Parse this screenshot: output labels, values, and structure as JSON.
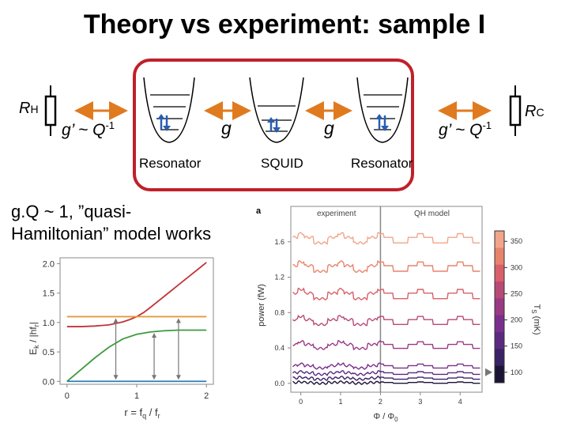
{
  "slide": {
    "title": "Theory vs experiment: sample I",
    "resistor_left": {
      "main": "R",
      "sub": "H"
    },
    "resistor_right": {
      "main": "R",
      "sub": "C"
    },
    "coupling_left": {
      "text": "g’ ~ Q",
      "exp": "-1"
    },
    "coupling_right": {
      "text": "g’ ~ Q",
      "exp": "-1"
    },
    "coupling_g1": "g",
    "coupling_g2": "g",
    "resonator_left_label": "Resonator",
    "squid_label": "SQUID",
    "resonator_right_label": "Resonator",
    "note_line1": "g.Q ~ 1, ”quasi-",
    "note_line2": "Hamiltonian” model works"
  },
  "colors": {
    "accent_red": "#c0202a",
    "arrow_orange": "#e07a1f",
    "arrow_blue": "#2a5db0"
  },
  "chart_data": [
    {
      "type": "line",
      "title": "",
      "xlabel": "r = f",
      "xlabel_parts": {
        "r": "r = f",
        "q": "q",
        "slash": " / f",
        "r2": "r"
      },
      "ylabel": "E",
      "ylabel_parts": {
        "e": "E",
        "k": "k",
        "rest": " / |hf",
        "r": "r",
        "close": "|"
      },
      "xlim": [
        -0.1,
        2.1
      ],
      "ylim": [
        -0.05,
        2.1
      ],
      "x_ticks": [
        "0",
        "1",
        "2"
      ],
      "y_ticks": [
        "0.0",
        "0.5",
        "1.0",
        "1.5",
        "2.0"
      ],
      "series": [
        {
          "color": "#c0343a",
          "x": [
            0,
            0.2,
            0.4,
            0.6,
            0.8,
            0.9,
            1.0,
            1.1,
            1.2,
            1.4,
            1.6,
            1.8,
            2.0
          ],
          "y": [
            0.93,
            0.93,
            0.94,
            0.96,
            1.01,
            1.05,
            1.1,
            1.17,
            1.26,
            1.45,
            1.64,
            1.83,
            2.02
          ]
        },
        {
          "color": "#e39a3a",
          "x": [
            0,
            2
          ],
          "y": [
            1.1,
            1.1
          ]
        },
        {
          "color": "#3d9a3d",
          "x": [
            0,
            0.2,
            0.4,
            0.6,
            0.8,
            1.0,
            1.2,
            1.4,
            1.6,
            1.8,
            2.0
          ],
          "y": [
            0,
            0.2,
            0.4,
            0.58,
            0.72,
            0.8,
            0.84,
            0.86,
            0.87,
            0.87,
            0.87
          ]
        },
        {
          "color": "#2a7fb8",
          "x": [
            0,
            2
          ],
          "y": [
            0,
            0
          ]
        }
      ],
      "arrows": [
        {
          "x": 0.7,
          "y0": 0,
          "y1": 1.1
        },
        {
          "x": 1.25,
          "y0": 0,
          "y1": 0.85
        },
        {
          "x": 1.6,
          "y0": 0,
          "y1": 1.1
        }
      ]
    },
    {
      "type": "line",
      "title": "",
      "panel_label": "a",
      "legend_experiment": "experiment",
      "legend_model": "QH model",
      "xlabel": "Φ / Φ",
      "xlabel_sub": "0",
      "ylabel": "power (fW)",
      "xlim": [
        -0.25,
        4.55
      ],
      "ylim": [
        -0.1,
        2.0
      ],
      "x_ticks": [
        "0",
        "1",
        "2",
        "3",
        "4"
      ],
      "y_ticks": [
        "0.0",
        "0.4",
        "0.8",
        "1.2",
        "1.6"
      ],
      "divider_x": 2,
      "colorbar_label": "T",
      "colorbar_label_sub": "S",
      "colorbar_unit": " (mK)",
      "colorbar_ticks": [
        "100",
        "150",
        "200",
        "250",
        "300",
        "350"
      ],
      "colorbar_range": [
        80,
        370
      ],
      "series": [
        {
          "color": "#f2a58a",
          "offset": 1.65,
          "amp": 0.07
        },
        {
          "color": "#e8846c",
          "offset": 1.33,
          "amp": 0.07
        },
        {
          "color": "#d9606a",
          "offset": 1.02,
          "amp": 0.07
        },
        {
          "color": "#b84a76",
          "offset": 0.72,
          "amp": 0.06
        },
        {
          "color": "#9a3a84",
          "offset": 0.44,
          "amp": 0.05
        },
        {
          "color": "#7a2f8c",
          "offset": 0.2,
          "amp": 0.03
        },
        {
          "color": "#5a2a80",
          "offset": 0.12,
          "amp": 0.02
        },
        {
          "color": "#3a2266",
          "offset": 0.06,
          "amp": 0.015
        },
        {
          "color": "#1c1436",
          "offset": 0.01,
          "amp": 0.01
        }
      ]
    }
  ]
}
